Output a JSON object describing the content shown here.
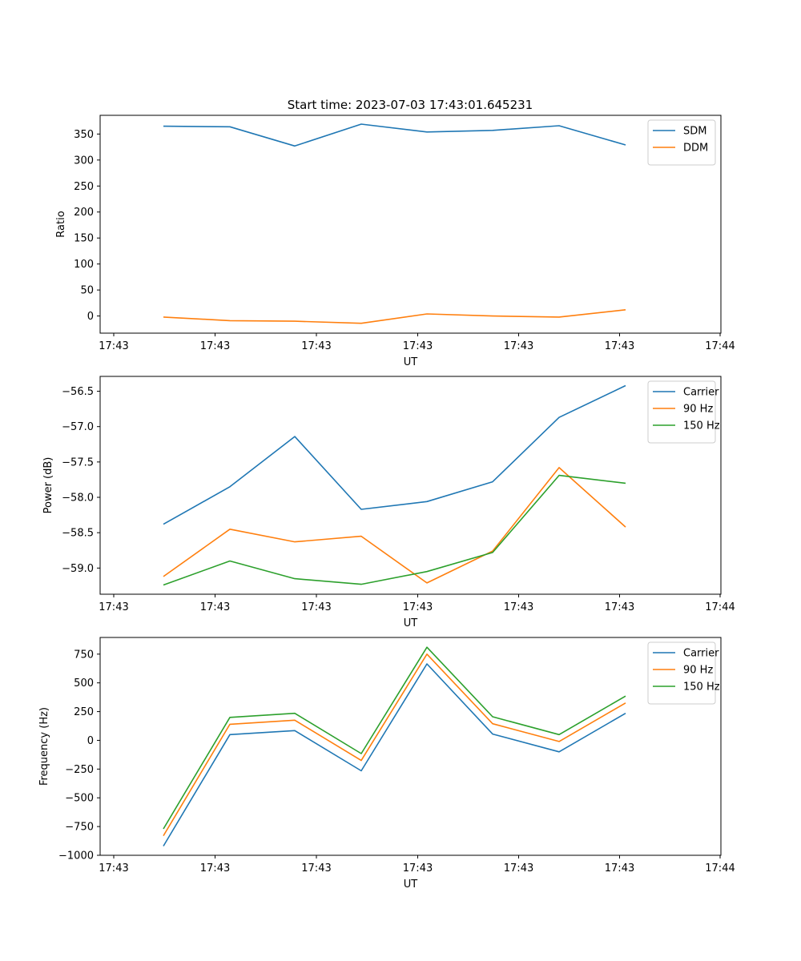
{
  "title": "Start time: 2023-07-03 17:43:01.645231",
  "chart_data": [
    {
      "type": "line",
      "xlabel": "UT",
      "ylabel": "Ratio",
      "x_ticks": [
        "17:43",
        "17:43",
        "17:43",
        "17:43",
        "17:43",
        "17:43",
        "17:44"
      ],
      "ylim": [
        -33,
        386
      ],
      "y_ticks": [
        0,
        50,
        100,
        150,
        200,
        250,
        300,
        350
      ],
      "y_tick_labels": [
        "0",
        "50",
        "100",
        "150",
        "200",
        "250",
        "300",
        "350"
      ],
      "legend": "top-right",
      "series": [
        {
          "name": "SDM",
          "color": "#1f77b4",
          "values": [
            365,
            364,
            327,
            369,
            354,
            357,
            366,
            329
          ]
        },
        {
          "name": "DDM",
          "color": "#ff7f0e",
          "values": [
            -2,
            -9,
            -10,
            -14,
            4,
            0,
            -2,
            12
          ]
        }
      ]
    },
    {
      "type": "line",
      "xlabel": "UT",
      "ylabel": "Power (dB)",
      "x_ticks": [
        "17:43",
        "17:43",
        "17:43",
        "17:43",
        "17:43",
        "17:43",
        "17:44"
      ],
      "ylim": [
        -59.37,
        -56.29
      ],
      "y_ticks": [
        -59.0,
        -58.5,
        -58.0,
        -57.5,
        -57.0,
        -56.5
      ],
      "y_tick_labels": [
        "−59.0",
        "−58.5",
        "−58.0",
        "−57.5",
        "−57.0",
        "−56.5"
      ],
      "legend": "top-right",
      "series": [
        {
          "name": "Carrier",
          "color": "#1f77b4",
          "values": [
            -58.38,
            -57.85,
            -57.14,
            -58.17,
            -58.06,
            -57.78,
            -56.87,
            -56.42
          ]
        },
        {
          "name": "90 Hz",
          "color": "#ff7f0e",
          "values": [
            -59.12,
            -58.45,
            -58.63,
            -58.55,
            -59.21,
            -58.76,
            -57.58,
            -58.42
          ]
        },
        {
          "name": "150 Hz",
          "color": "#2ca02c",
          "values": [
            -59.24,
            -58.9,
            -59.15,
            -59.23,
            -59.05,
            -58.78,
            -57.69,
            -57.8
          ]
        }
      ]
    },
    {
      "type": "line",
      "xlabel": "UT",
      "ylabel": "Frequency (Hz)",
      "x_ticks": [
        "17:43",
        "17:43",
        "17:43",
        "17:43",
        "17:43",
        "17:43",
        "17:44"
      ],
      "ylim": [
        -1000,
        895
      ],
      "y_ticks": [
        -1000,
        -750,
        -500,
        -250,
        0,
        250,
        500,
        750
      ],
      "y_tick_labels": [
        "−1000",
        "−750",
        "−500",
        "−250",
        "0",
        "250",
        "500",
        "750"
      ],
      "legend": "top-right",
      "series": [
        {
          "name": "Carrier",
          "color": "#1f77b4",
          "values": [
            -920,
            50,
            85,
            -265,
            665,
            55,
            -100,
            235
          ]
        },
        {
          "name": "90 Hz",
          "color": "#ff7f0e",
          "values": [
            -830,
            140,
            175,
            -175,
            750,
            145,
            -10,
            325
          ]
        },
        {
          "name": "150 Hz",
          "color": "#2ca02c",
          "values": [
            -770,
            200,
            235,
            -115,
            810,
            205,
            50,
            385
          ]
        }
      ]
    }
  ]
}
